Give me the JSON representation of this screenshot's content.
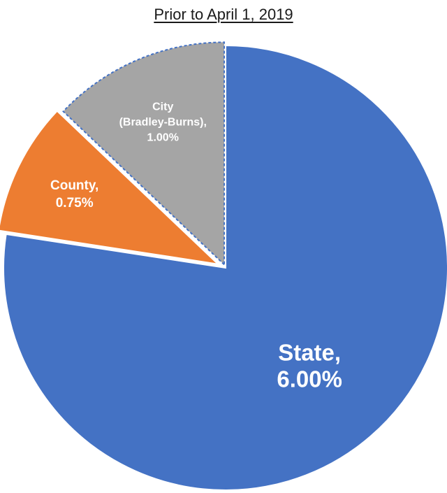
{
  "chart_data": {
    "type": "pie",
    "title": "Prior to April 1, 2019",
    "slices": [
      {
        "name": "State",
        "value": 6.0,
        "label_lines": [
          "State,",
          "6.00%"
        ],
        "color": "#4472C4",
        "exploded": false,
        "dashed_border": false
      },
      {
        "name": "County",
        "value": 0.75,
        "label_lines": [
          "County,",
          "0.75%"
        ],
        "color": "#ED7D31",
        "exploded": true,
        "dashed_border": false
      },
      {
        "name": "City (Bradley-Burns)",
        "value": 1.0,
        "label_lines": [
          "City",
          "(Bradley-Burns),",
          "1.00%"
        ],
        "color": "#A5A5A5",
        "exploded": true,
        "dashed_border": true,
        "border_color": "#4472C4"
      }
    ],
    "legend": "none",
    "data_labels": "inside"
  }
}
